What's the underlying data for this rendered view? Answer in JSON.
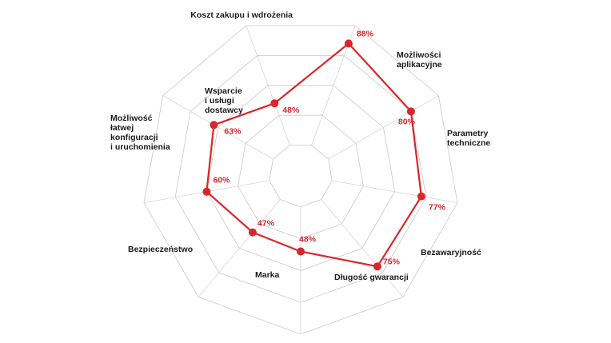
{
  "chart_data": {
    "type": "radar",
    "title": "",
    "scale": {
      "min": 0,
      "max": 100,
      "rings": 5,
      "ring_step": 20,
      "start_angle_deg": 20
    },
    "colors": {
      "series": "#d9262b",
      "grid": "#c9c9c9",
      "label": "#1a1a1a"
    },
    "grid": true,
    "categories": [
      {
        "label": [
          "Koszt zakupu i wdrożenia"
        ],
        "value": 88,
        "value_label": "88%"
      },
      {
        "label": [
          "Możliwości",
          "aplikacyjne"
        ],
        "value": 80,
        "value_label": "80%"
      },
      {
        "label": [
          "Parametry",
          "techniczne"
        ],
        "value": 77,
        "value_label": "77%"
      },
      {
        "label": [
          "Bezawaryjność"
        ],
        "value": 75,
        "value_label": "75%"
      },
      {
        "label": [
          "Długość gwarancji"
        ],
        "value": 48,
        "value_label": "48%"
      },
      {
        "label": [
          "Marka"
        ],
        "value": 47,
        "value_label": "47%"
      },
      {
        "label": [
          "Bezpieczeństwo"
        ],
        "value": 60,
        "value_label": "60%"
      },
      {
        "label": [
          "Możliwość",
          "łatwej",
          "konfiguracji",
          "i uruchomienia"
        ],
        "value": 63,
        "value_label": "63%"
      },
      {
        "label": [
          "Wsparcie",
          "i usługi",
          "dostawcy"
        ],
        "value": 48,
        "value_label": "48%"
      }
    ]
  }
}
